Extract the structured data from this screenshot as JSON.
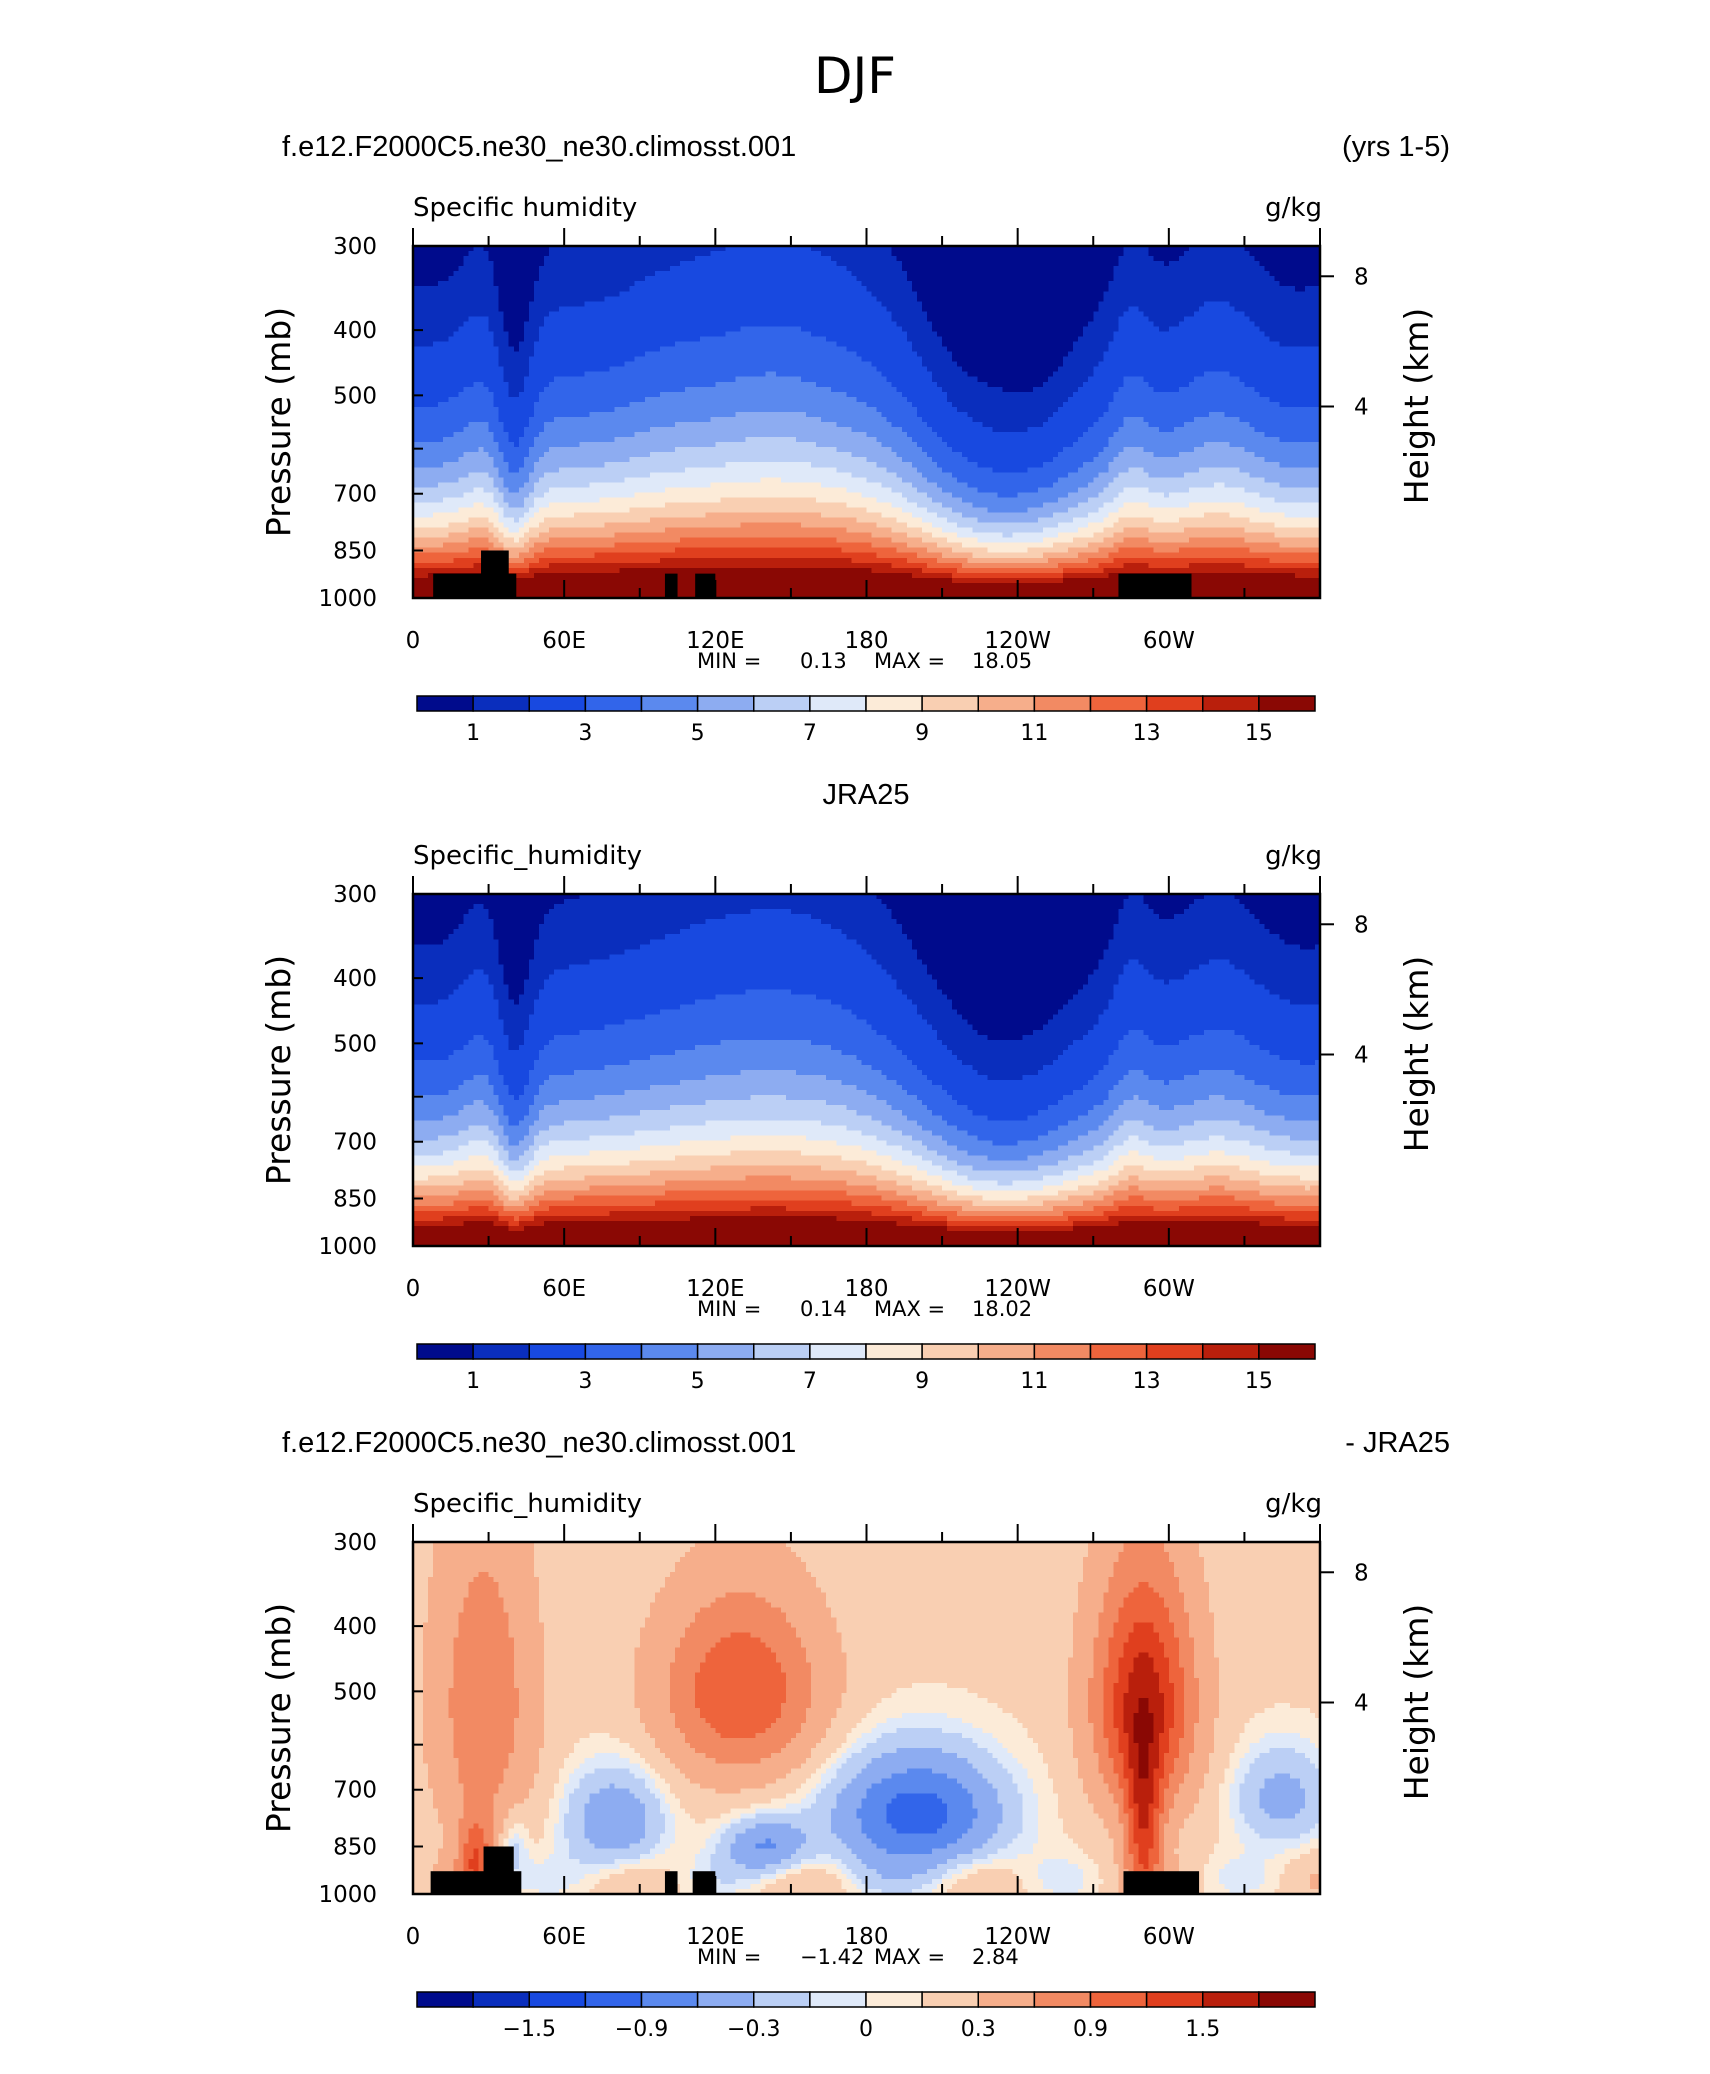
{
  "figure": {
    "title": "DJF"
  },
  "chart_data": [
    {
      "type": "heatmap",
      "case_left": "f.e12.F2000C5.ne30_ne30.climosst.001",
      "case_right": "(yrs 1-5)",
      "field_label": "Specific humidity",
      "units": "g/kg",
      "ylabel": "Pressure (mb)",
      "y2label": "Height (km)",
      "yticks": [
        "300",
        "400",
        "500",
        "700",
        "850",
        "1000"
      ],
      "y2ticks": [
        "8",
        "4"
      ],
      "xticks": [
        "0",
        "60E",
        "120E",
        "180",
        "120W",
        "60W"
      ],
      "xlim": [
        0,
        360
      ],
      "ylim": [
        1000,
        300
      ],
      "min_label": "MIN =",
      "min_value": "0.13",
      "max_label": "MAX =",
      "max_value": "18.05",
      "colorbar_labels": [
        "1",
        "3",
        "5",
        "7",
        "9",
        "11",
        "13",
        "15"
      ],
      "contour_levels": [
        0.5,
        1,
        2,
        3,
        4,
        5,
        6,
        7,
        8,
        9,
        10,
        11,
        12,
        13,
        14,
        15
      ]
    },
    {
      "type": "heatmap",
      "case_center": "JRA25",
      "field_label": "Specific_humidity",
      "units": "g/kg",
      "ylabel": "Pressure (mb)",
      "y2label": "Height (km)",
      "yticks": [
        "300",
        "400",
        "500",
        "700",
        "850",
        "1000"
      ],
      "y2ticks": [
        "8",
        "4"
      ],
      "xticks": [
        "0",
        "60E",
        "120E",
        "180",
        "120W",
        "60W"
      ],
      "xlim": [
        0,
        360
      ],
      "ylim": [
        1000,
        300
      ],
      "min_label": "MIN =",
      "min_value": "0.14",
      "max_label": "MAX =",
      "max_value": "18.02",
      "colorbar_labels": [
        "1",
        "3",
        "5",
        "7",
        "9",
        "11",
        "13",
        "15"
      ],
      "contour_levels": [
        0.5,
        1,
        2,
        3,
        4,
        5,
        6,
        7,
        8,
        9,
        10,
        11,
        12,
        13,
        14,
        15
      ]
    },
    {
      "type": "heatmap",
      "case_left": "f.e12.F2000C5.ne30_ne30.climosst.001",
      "case_right": "- JRA25",
      "field_label": "Specific_humidity",
      "units": "g/kg",
      "ylabel": "Pressure (mb)",
      "y2label": "Height (km)",
      "yticks": [
        "300",
        "400",
        "500",
        "700",
        "850",
        "1000"
      ],
      "y2ticks": [
        "8",
        "4"
      ],
      "xticks": [
        "0",
        "60E",
        "120E",
        "180",
        "120W",
        "60W"
      ],
      "xlim": [
        0,
        360
      ],
      "ylim": [
        1000,
        300
      ],
      "min_label": "MIN =",
      "min_value": "−1.42",
      "max_label": "MAX =",
      "max_value": "2.84",
      "colorbar_labels": [
        "−1.5",
        "−0.9",
        "−0.3",
        "0",
        "0.3",
        "0.9",
        "1.5"
      ],
      "contour_levels": [
        -1.8,
        -1.5,
        -1.2,
        -0.9,
        -0.6,
        -0.3,
        -0.1,
        0,
        0.1,
        0.3,
        0.6,
        0.9,
        1.2,
        1.5,
        1.8
      ]
    }
  ],
  "palette": [
    "#000b8c",
    "#0a2ebd",
    "#1849e0",
    "#3265ea",
    "#5b89ee",
    "#8dacf1",
    "#bbcff5",
    "#dfe9f9",
    "#fcebd8",
    "#f9cfb2",
    "#f6ae8b",
    "#f28a63",
    "#ee643c",
    "#e03f1e",
    "#b91f0c",
    "#8a0804"
  ]
}
